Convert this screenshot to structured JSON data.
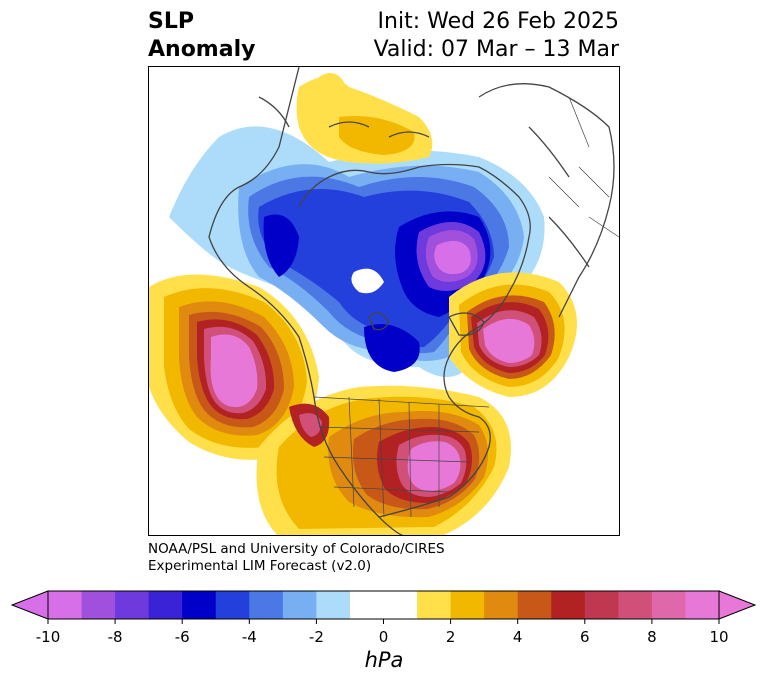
{
  "header": {
    "title_line1": "SLP",
    "title_line2": "Anomaly",
    "init_label": "Init: Wed 26 Feb 2025",
    "valid_label": "Valid: 07 Mar – 13 Mar"
  },
  "credit": {
    "line1": "NOAA/PSL and University of Colorado/CIRES",
    "line2": "Experimental LIM Forecast (v2.0)"
  },
  "colorbar": {
    "unit": "hPa",
    "ticks": [
      "-10",
      "-8",
      "-6",
      "-4",
      "-2",
      "0",
      "2",
      "4",
      "6",
      "8",
      "10"
    ],
    "colors": [
      "#d770e8",
      "#a050dc",
      "#6e3ade",
      "#3a22d6",
      "#0000c8",
      "#2440dc",
      "#4c78e6",
      "#78aef2",
      "#acdcfa",
      "#ffffff",
      "#ffffff",
      "#ffe04a",
      "#f2b800",
      "#e08a10",
      "#c85818",
      "#b22222",
      "#c03850",
      "#d0507a",
      "#de68aa",
      "#e878d8"
    ]
  },
  "map": {
    "projection": "north-polar-stereographic",
    "field": "sea-level-pressure-anomaly",
    "features": [
      "coastlines",
      "country-borders",
      "us-state-borders",
      "canadian-province-borders"
    ]
  }
}
